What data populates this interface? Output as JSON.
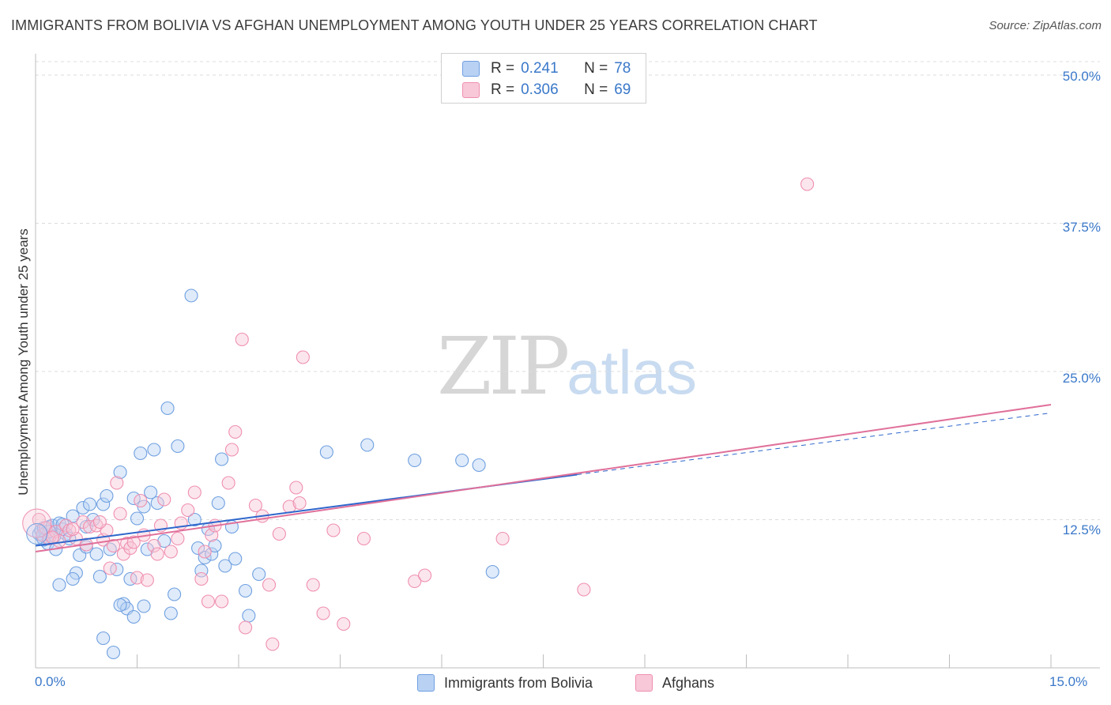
{
  "title": "IMMIGRANTS FROM BOLIVIA VS AFGHAN UNEMPLOYMENT AMONG YOUTH UNDER 25 YEARS CORRELATION CHART",
  "source": "Source: ZipAtlas.com",
  "watermark": {
    "zip": "ZIP",
    "atlas": "atlas"
  },
  "legend": {
    "rows": [
      {
        "r_label": "R =",
        "r_value": "0.241",
        "n_label": "N =",
        "n_value": "78"
      },
      {
        "r_label": "R =",
        "r_value": "0.306",
        "n_label": "N =",
        "n_value": "69"
      }
    ]
  },
  "colors": {
    "bolivia": "#6f9fe0",
    "bolivia_fill": "#b9d2f4",
    "bolivia_line": "#2e66cc",
    "afghans": "#ef8fb0",
    "afghans_fill": "#f8c8d8",
    "afghans_line": "#e0709a",
    "tick_text": "#3a78c9"
  },
  "chart_data": {
    "type": "scatter",
    "xlabel": "",
    "ylabel": "Unemployment Among Youth under 25 years",
    "xlim": [
      0,
      15
    ],
    "ylim": [
      0,
      50
    ],
    "x_tick_labels": [
      "0.0%",
      "15.0%"
    ],
    "y_ticks": [
      12.5,
      25.0,
      37.5,
      50.0
    ],
    "y_tick_labels": [
      "12.5%",
      "25.0%",
      "37.5%",
      "50.0%"
    ],
    "grid": true,
    "legend_position": "top-center",
    "series": [
      {
        "name": "Immigrants from Bolivia",
        "r": 0.241,
        "n": 78,
        "trend": {
          "x0": 0,
          "y0": 10.3,
          "x1": 8.0,
          "y1": 16.3,
          "dashed_to_x": 15,
          "dashed_to_y": 21.5
        },
        "points": [
          [
            0.05,
            11.3
          ],
          [
            0.08,
            11.6
          ],
          [
            0.1,
            11.0
          ],
          [
            0.12,
            11.8
          ],
          [
            0.15,
            11.4
          ],
          [
            0.18,
            10.5
          ],
          [
            0.2,
            11.9
          ],
          [
            0.22,
            11.2
          ],
          [
            0.25,
            12.0
          ],
          [
            0.28,
            11.1
          ],
          [
            0.3,
            10.0
          ],
          [
            0.35,
            12.2
          ],
          [
            0.4,
            11.7
          ],
          [
            0.45,
            11.3
          ],
          [
            0.5,
            10.9
          ],
          [
            0.55,
            12.8
          ],
          [
            0.6,
            8.0
          ],
          [
            0.65,
            9.5
          ],
          [
            0.7,
            13.5
          ],
          [
            0.75,
            11.9
          ],
          [
            0.8,
            13.8
          ],
          [
            0.85,
            12.5
          ],
          [
            0.9,
            9.6
          ],
          [
            0.95,
            7.7
          ],
          [
            1.0,
            13.8
          ],
          [
            1.05,
            14.5
          ],
          [
            1.1,
            10.0
          ],
          [
            1.2,
            8.3
          ],
          [
            1.25,
            16.5
          ],
          [
            1.3,
            5.4
          ],
          [
            1.35,
            5.0
          ],
          [
            1.4,
            7.5
          ],
          [
            1.45,
            14.3
          ],
          [
            1.5,
            12.6
          ],
          [
            1.55,
            18.1
          ],
          [
            1.6,
            13.6
          ],
          [
            1.65,
            10.0
          ],
          [
            1.7,
            14.8
          ],
          [
            1.75,
            18.4
          ],
          [
            1.8,
            13.9
          ],
          [
            1.9,
            10.7
          ],
          [
            1.95,
            21.9
          ],
          [
            2.0,
            4.6
          ],
          [
            2.05,
            6.2
          ],
          [
            2.1,
            18.7
          ],
          [
            2.3,
            31.4
          ],
          [
            2.35,
            12.5
          ],
          [
            2.4,
            10.1
          ],
          [
            2.45,
            8.2
          ],
          [
            2.5,
            9.3
          ],
          [
            2.55,
            11.7
          ],
          [
            2.6,
            9.6
          ],
          [
            2.7,
            13.9
          ],
          [
            2.75,
            17.6
          ],
          [
            2.8,
            8.6
          ],
          [
            2.9,
            11.9
          ],
          [
            2.95,
            9.2
          ],
          [
            3.1,
            6.5
          ],
          [
            3.15,
            4.4
          ],
          [
            3.3,
            7.9
          ],
          [
            4.3,
            18.2
          ],
          [
            4.9,
            18.8
          ],
          [
            5.6,
            17.5
          ],
          [
            6.3,
            17.5
          ],
          [
            6.55,
            17.1
          ],
          [
            6.75,
            8.1
          ],
          [
            0.12,
            10.8
          ],
          [
            0.35,
            7.0
          ],
          [
            0.55,
            7.5
          ],
          [
            1.0,
            2.5
          ],
          [
            1.15,
            1.3
          ],
          [
            1.25,
            5.3
          ],
          [
            1.45,
            4.3
          ],
          [
            1.6,
            5.2
          ],
          [
            0.2,
            11.5
          ],
          [
            0.4,
            12.1
          ],
          [
            0.75,
            10.2
          ],
          [
            2.65,
            10.3
          ]
        ]
      },
      {
        "name": "Afghans",
        "r": 0.306,
        "n": 69,
        "trend": {
          "x0": 0,
          "y0": 9.8,
          "x1": 15,
          "y1": 22.2
        },
        "points": [
          [
            0.05,
            12.5
          ],
          [
            0.1,
            11.2
          ],
          [
            0.15,
            11.8
          ],
          [
            0.2,
            10.9
          ],
          [
            0.3,
            11.5
          ],
          [
            0.35,
            10.7
          ],
          [
            0.45,
            12.0
          ],
          [
            0.5,
            11.6
          ],
          [
            0.6,
            10.9
          ],
          [
            0.7,
            12.3
          ],
          [
            0.75,
            10.4
          ],
          [
            0.8,
            11.9
          ],
          [
            0.9,
            12.0
          ],
          [
            1.0,
            10.8
          ],
          [
            1.05,
            11.6
          ],
          [
            1.1,
            8.4
          ],
          [
            1.15,
            10.3
          ],
          [
            1.2,
            15.6
          ],
          [
            1.25,
            13.0
          ],
          [
            1.3,
            9.6
          ],
          [
            1.35,
            10.5
          ],
          [
            1.4,
            10.1
          ],
          [
            1.5,
            7.6
          ],
          [
            1.55,
            14.1
          ],
          [
            1.6,
            11.2
          ],
          [
            1.65,
            7.4
          ],
          [
            1.75,
            10.3
          ],
          [
            1.8,
            9.6
          ],
          [
            1.85,
            12.0
          ],
          [
            1.9,
            14.2
          ],
          [
            2.0,
            9.8
          ],
          [
            2.1,
            10.9
          ],
          [
            2.15,
            12.2
          ],
          [
            2.25,
            13.3
          ],
          [
            2.35,
            14.8
          ],
          [
            2.45,
            7.5
          ],
          [
            2.5,
            9.8
          ],
          [
            2.55,
            5.6
          ],
          [
            2.6,
            11.2
          ],
          [
            2.65,
            12.0
          ],
          [
            2.75,
            5.6
          ],
          [
            2.85,
            15.6
          ],
          [
            2.9,
            18.4
          ],
          [
            2.95,
            19.9
          ],
          [
            3.05,
            27.7
          ],
          [
            3.1,
            3.4
          ],
          [
            3.25,
            13.7
          ],
          [
            3.35,
            12.8
          ],
          [
            3.45,
            7.0
          ],
          [
            3.5,
            2.0
          ],
          [
            3.6,
            11.3
          ],
          [
            3.75,
            13.6
          ],
          [
            3.85,
            15.2
          ],
          [
            3.9,
            13.9
          ],
          [
            3.95,
            26.2
          ],
          [
            4.1,
            7.0
          ],
          [
            4.25,
            4.6
          ],
          [
            4.4,
            11.6
          ],
          [
            4.55,
            3.7
          ],
          [
            4.85,
            10.9
          ],
          [
            5.6,
            7.3
          ],
          [
            5.75,
            7.8
          ],
          [
            6.9,
            10.9
          ],
          [
            8.1,
            6.6
          ],
          [
            11.4,
            40.8
          ],
          [
            0.25,
            11.0
          ],
          [
            0.55,
            11.7
          ],
          [
            0.95,
            12.3
          ],
          [
            1.45,
            10.6
          ]
        ]
      }
    ]
  }
}
